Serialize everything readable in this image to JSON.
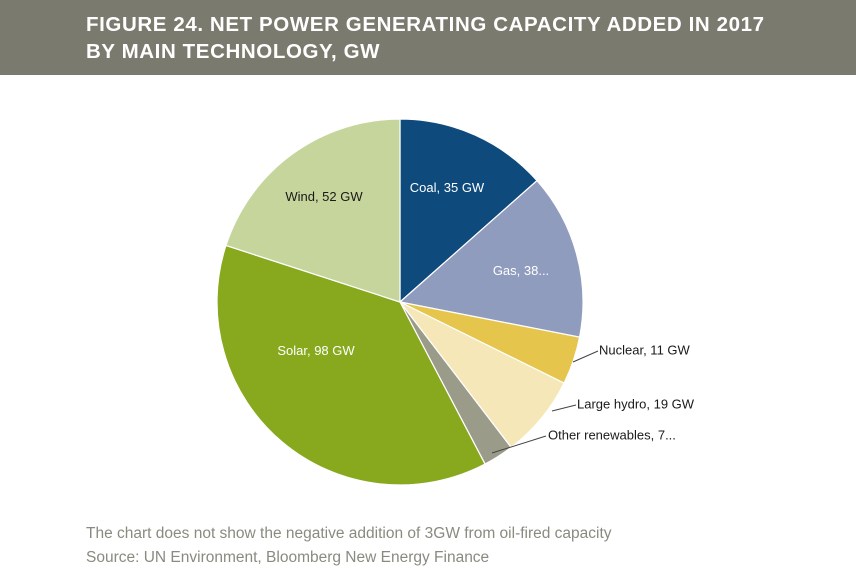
{
  "header": {
    "title_line1": "FIGURE 24. NET POWER GENERATING CAPACITY ADDED IN 2017",
    "title_line2": "BY MAIN TECHNOLOGY, GW"
  },
  "colors": {
    "header_bg": "#7a7a6e",
    "coal": "#0e4a7c",
    "gas": "#909cbe",
    "nuclear": "#e6c54c",
    "large_hydro": "#f5e7b7",
    "other_renewables": "#9b9b8a",
    "solar": "#88a91e",
    "wind": "#c6d59b"
  },
  "chart_data": {
    "type": "pie",
    "title": "FIGURE 24. NET POWER GENERATING CAPACITY ADDED IN 2017 BY MAIN TECHNOLOGY, GW",
    "start_angle_deg": 0,
    "direction": "clockwise",
    "slices": [
      {
        "name": "Coal",
        "value": 35,
        "label": "Coal, 35 GW",
        "color": "#0e4a7c",
        "label_style": "inside-light"
      },
      {
        "name": "Gas",
        "value": 38,
        "label": "Gas, 38...",
        "color": "#909cbe",
        "label_style": "inside-light"
      },
      {
        "name": "Nuclear",
        "value": 11,
        "label": "Nuclear, 11 GW",
        "color": "#e6c54c",
        "label_style": "callout"
      },
      {
        "name": "Large hydro",
        "value": 19,
        "label": "Large hydro, 19 GW",
        "color": "#f5e7b7",
        "label_style": "callout"
      },
      {
        "name": "Other renewables",
        "value": 7,
        "label": "Other renewables, 7...",
        "color": "#9b9b8a",
        "label_style": "callout"
      },
      {
        "name": "Solar",
        "value": 98,
        "label": "Solar, 98 GW",
        "color": "#88a91e",
        "label_style": "inside-light"
      },
      {
        "name": "Wind",
        "value": 52,
        "label": "Wind, 52 GW",
        "color": "#c6d59b",
        "label_style": "inside-dark"
      }
    ]
  },
  "footer": {
    "note": "The chart does not show the negative addition of 3GW from oil-fired capacity",
    "source": "Source: UN Environment, Bloomberg New Energy Finance"
  }
}
